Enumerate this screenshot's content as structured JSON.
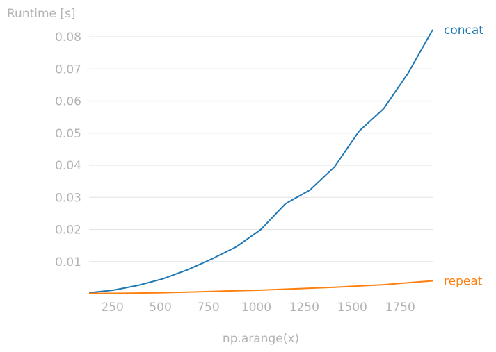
{
  "chart_data": {
    "type": "line",
    "title": "",
    "ylabel": "Runtime [s]",
    "xlabel": "np.arange(x)",
    "xlim": [
      128,
      1920
    ],
    "ylim": [
      0,
      0.0865
    ],
    "xticks": [
      250,
      500,
      750,
      1000,
      1250,
      1500,
      1750
    ],
    "yticks": [
      0.01,
      0.02,
      0.03,
      0.04,
      0.05,
      0.06,
      0.07,
      0.08
    ],
    "xtick_labels": [
      "250",
      "500",
      "750",
      "1000",
      "1250",
      "1500",
      "1750"
    ],
    "ytick_labels": [
      "0.01",
      "0.02",
      "0.03",
      "0.04",
      "0.05",
      "0.06",
      "0.07",
      "0.08"
    ],
    "grid": "horizontal",
    "legend": "inline labels at right end of lines",
    "series": [
      {
        "name": "concat",
        "color": "#1f77b4",
        "x": [
          128,
          256,
          384,
          512,
          640,
          768,
          896,
          1024,
          1152,
          1280,
          1408,
          1536,
          1664,
          1792,
          1920
        ],
        "y": [
          0.0003,
          0.0011,
          0.0026,
          0.0046,
          0.0074,
          0.0108,
          0.0146,
          0.02,
          0.028,
          0.0323,
          0.0395,
          0.0506,
          0.0576,
          0.0687,
          0.0822
        ]
      },
      {
        "name": "repeat",
        "color": "#ff7f0e",
        "x": [
          128,
          256,
          384,
          512,
          640,
          768,
          896,
          1024,
          1152,
          1280,
          1408,
          1536,
          1664,
          1792,
          1920
        ],
        "y": [
          0.0001,
          0.0001,
          0.0002,
          0.0003,
          0.0005,
          0.0007,
          0.0009,
          0.0011,
          0.0014,
          0.0017,
          0.002,
          0.0024,
          0.0028,
          0.0034,
          0.004
        ]
      }
    ]
  }
}
